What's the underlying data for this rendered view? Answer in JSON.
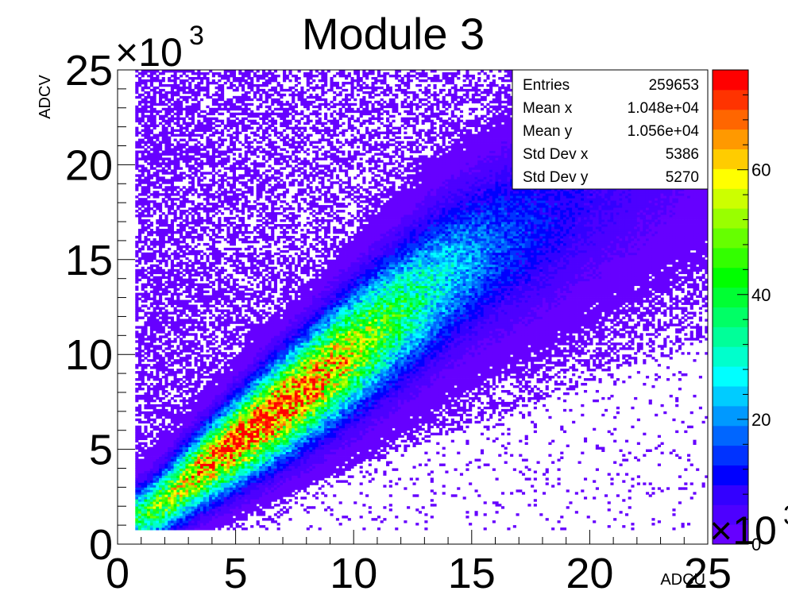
{
  "chart_data": {
    "type": "heatmap",
    "title": "Module 3",
    "xlabel": "ADCU",
    "ylabel": "ADCV",
    "x_exponent_label": "×10",
    "y_exponent_label": "×10",
    "exponent": "3",
    "xlim": [
      0,
      25
    ],
    "ylim": [
      0,
      25
    ],
    "x_ticks": [
      "0",
      "5",
      "10",
      "15",
      "20",
      "25"
    ],
    "y_ticks": [
      "0",
      "5",
      "10",
      "15",
      "20",
      "25"
    ],
    "z_range": [
      0,
      76
    ],
    "z_ticks": [
      "0",
      "20",
      "40",
      "60"
    ],
    "palette": [
      "#6600ff",
      "#4d00ff",
      "#3300ff",
      "#0000ff",
      "#0033ff",
      "#0066ff",
      "#0099ff",
      "#00ccff",
      "#00ffff",
      "#00ffcc",
      "#00ff99",
      "#00ff66",
      "#00ff33",
      "#00ff00",
      "#33ff00",
      "#66ff00",
      "#99ff00",
      "#ccff00",
      "#ffff00",
      "#ffcc00",
      "#ff9900",
      "#ff6600",
      "#ff3300",
      "#ff0000"
    ],
    "distribution": {
      "ridge_points": [
        [
          1,
          1.5
        ],
        [
          2,
          2.3
        ],
        [
          3,
          3.4
        ],
        [
          4,
          4.4
        ],
        [
          6,
          6.3
        ],
        [
          8,
          8.2
        ],
        [
          10,
          10.2
        ],
        [
          12,
          12.2
        ],
        [
          14,
          14.2
        ],
        [
          16,
          15.8
        ],
        [
          18,
          17.0
        ],
        [
          20,
          18.5
        ],
        [
          24,
          20.5
        ]
      ],
      "peak_x": 6,
      "peak_y": 6.5,
      "peak_counts": 70
    },
    "stats": {
      "rows": [
        {
          "label": "Entries",
          "value": "259653"
        },
        {
          "label": "Mean x",
          "value": "1.048e+04"
        },
        {
          "label": "Mean y",
          "value": "1.056e+04"
        },
        {
          "label": "Std Dev x",
          "value": "5386"
        },
        {
          "label": "Std Dev y",
          "value": "5270"
        }
      ]
    }
  }
}
